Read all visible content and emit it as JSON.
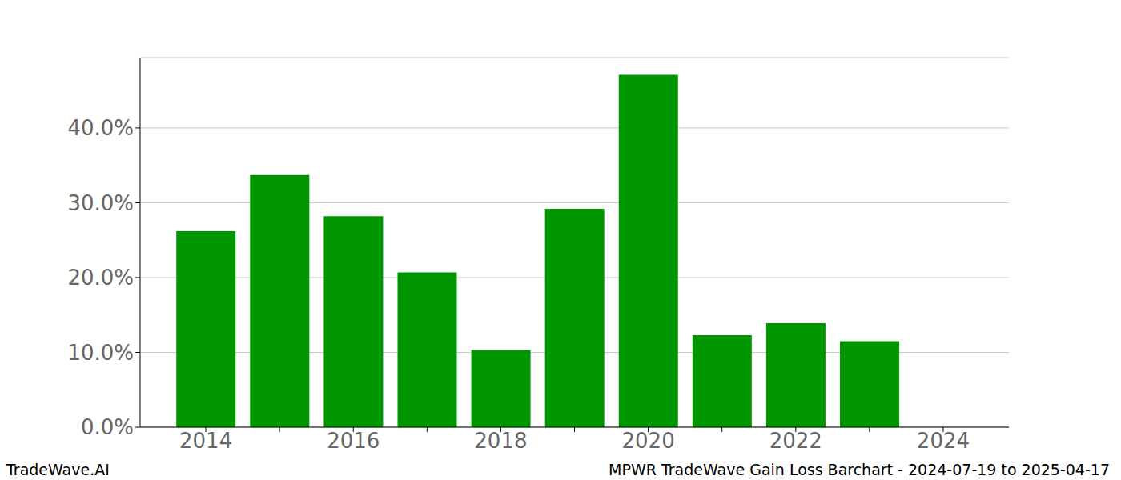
{
  "chart_data": {
    "type": "bar",
    "title": "MPWR TradeWave Gain Loss Barchart - 2024-07-19 to 2025-04-17",
    "annotations": [
      "TradeWave.AI"
    ],
    "categories": [
      "2014",
      null,
      "2016",
      null,
      "2018",
      null,
      "2020",
      null,
      "2022",
      null,
      "2024"
    ],
    "values": [
      26.2,
      33.7,
      28.2,
      20.7,
      10.3,
      29.2,
      47.1,
      12.3,
      13.9,
      11.5,
      null
    ],
    "color": "#009600",
    "ylim": [
      0,
      49.4
    ],
    "yticks": [
      {
        "value": 0,
        "label": "0.0%"
      },
      {
        "value": 10,
        "label": "10.0%"
      },
      {
        "value": 20,
        "label": "20.0%"
      },
      {
        "value": 30,
        "label": "30.0%"
      },
      {
        "value": 40,
        "label": "40.0%"
      }
    ],
    "grid": true
  }
}
